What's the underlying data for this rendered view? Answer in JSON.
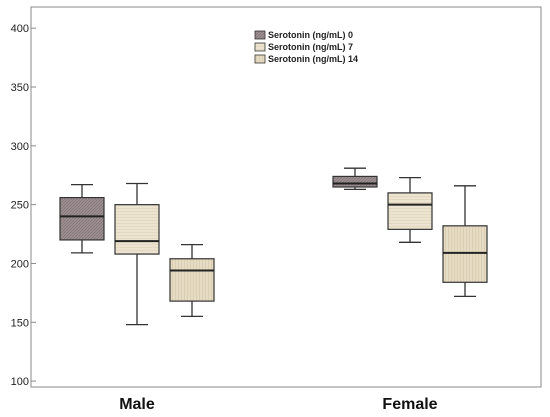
{
  "chart_data": {
    "type": "box",
    "categories": [
      "Male",
      "Female"
    ],
    "ylim": [
      95,
      418
    ],
    "yticks": [
      100,
      150,
      200,
      250,
      300,
      350,
      400
    ],
    "ytick_labels": [
      "100",
      "150",
      "200",
      "250",
      "300",
      "350",
      "400"
    ],
    "grid": false,
    "legend_position": "top-center",
    "series": [
      {
        "name": "Serotonin (ng/mL) 0",
        "color": "#9d8f92",
        "boxes": [
          {
            "category": "Male",
            "min": 209,
            "q1": 220,
            "median": 240,
            "q3": 256,
            "max": 267
          },
          {
            "category": "Female",
            "min": 263,
            "q1": 265,
            "median": 268,
            "q3": 274,
            "max": 281
          }
        ]
      },
      {
        "name": "Serotonin (ng/mL) 7",
        "color": "#ece4d0",
        "boxes": [
          {
            "category": "Male",
            "min": 148,
            "q1": 208,
            "median": 219,
            "q3": 250,
            "max": 268
          },
          {
            "category": "Female",
            "min": 218,
            "q1": 229,
            "median": 250,
            "q3": 260,
            "max": 273
          }
        ]
      },
      {
        "name": "Serotonin (ng/mL) 14",
        "color": "#e5dcc3",
        "boxes": [
          {
            "category": "Male",
            "min": 155,
            "q1": 168,
            "median": 194,
            "q3": 204,
            "max": 216
          },
          {
            "category": "Female",
            "min": 172,
            "q1": 184,
            "median": 209,
            "q3": 232,
            "max": 266
          }
        ]
      }
    ]
  }
}
